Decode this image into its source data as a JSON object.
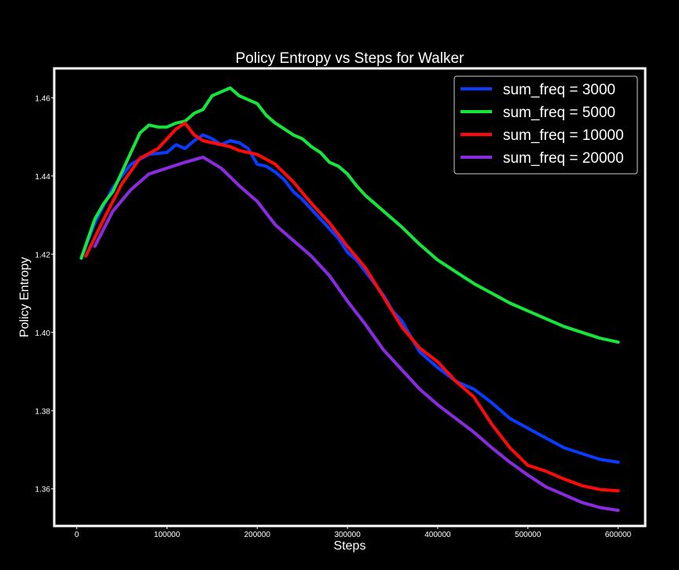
{
  "chart_data": {
    "type": "line",
    "title": "Policy Entropy vs Steps for Walker",
    "xlabel": "Steps",
    "ylabel": "Policy Entropy",
    "xlim": [
      -25000,
      630000
    ],
    "ylim": [
      1.3505,
      1.4675
    ],
    "x_ticks": [
      0,
      100000,
      200000,
      300000,
      400000,
      500000,
      600000
    ],
    "x_tick_labels": [
      "0",
      "100000",
      "200000",
      "300000",
      "400000",
      "500000",
      "600000"
    ],
    "y_ticks": [
      1.36,
      1.38,
      1.4,
      1.42,
      1.44,
      1.46
    ],
    "y_tick_labels": [
      "1.36",
      "1.38",
      "1.40",
      "1.42",
      "1.44",
      "1.46"
    ],
    "grid": false,
    "legend_position": "top-right",
    "background": "#000000",
    "foreground": "#ffffff",
    "series": [
      {
        "name": "sum_freq = 3000",
        "color": "#0a3cff",
        "x": [
          5000,
          20000,
          40000,
          60000,
          80000,
          100000,
          110000,
          120000,
          130000,
          140000,
          150000,
          160000,
          170000,
          180000,
          190000,
          200000,
          210000,
          220000,
          230000,
          240000,
          250000,
          260000,
          270000,
          280000,
          290000,
          300000,
          310000,
          320000,
          330000,
          340000,
          350000,
          360000,
          370000,
          380000,
          390000,
          400000,
          420000,
          440000,
          460000,
          480000,
          500000,
          520000,
          540000,
          560000,
          580000,
          600000
        ],
        "values": [
          1.419,
          1.428,
          1.437,
          1.443,
          1.4455,
          1.446,
          1.448,
          1.447,
          1.449,
          1.4505,
          1.4495,
          1.448,
          1.449,
          1.4485,
          1.447,
          1.443,
          1.4425,
          1.441,
          1.439,
          1.436,
          1.434,
          1.4315,
          1.429,
          1.4265,
          1.424,
          1.4205,
          1.4185,
          1.4155,
          1.4125,
          1.4095,
          1.4055,
          1.403,
          1.399,
          1.395,
          1.393,
          1.391,
          1.3875,
          1.3855,
          1.382,
          1.378,
          1.3755,
          1.373,
          1.3705,
          1.369,
          1.3675,
          1.3668
        ]
      },
      {
        "name": "sum_freq = 5000",
        "color": "#15e63c",
        "x": [
          5000,
          20000,
          30000,
          40000,
          50000,
          60000,
          70000,
          80000,
          90000,
          100000,
          110000,
          120000,
          130000,
          140000,
          150000,
          160000,
          170000,
          180000,
          190000,
          200000,
          210000,
          220000,
          230000,
          240000,
          250000,
          260000,
          270000,
          280000,
          290000,
          300000,
          310000,
          320000,
          340000,
          360000,
          380000,
          400000,
          420000,
          440000,
          460000,
          480000,
          500000,
          520000,
          540000,
          560000,
          580000,
          600000
        ],
        "values": [
          1.419,
          1.429,
          1.433,
          1.436,
          1.441,
          1.446,
          1.451,
          1.453,
          1.4525,
          1.4525,
          1.4535,
          1.454,
          1.456,
          1.457,
          1.4605,
          1.4615,
          1.4625,
          1.4605,
          1.4595,
          1.4585,
          1.4555,
          1.4535,
          1.452,
          1.4505,
          1.4495,
          1.4475,
          1.446,
          1.4435,
          1.4425,
          1.4405,
          1.4375,
          1.435,
          1.431,
          1.427,
          1.4225,
          1.4185,
          1.4155,
          1.4125,
          1.41,
          1.4075,
          1.4055,
          1.4035,
          1.4015,
          1.4,
          1.3985,
          1.3975
        ]
      },
      {
        "name": "sum_freq = 10000",
        "color": "#ff0a0a",
        "x": [
          10000,
          30000,
          50000,
          70000,
          90000,
          100000,
          110000,
          120000,
          130000,
          140000,
          150000,
          160000,
          170000,
          180000,
          200000,
          220000,
          240000,
          260000,
          280000,
          300000,
          320000,
          340000,
          360000,
          380000,
          400000,
          420000,
          440000,
          460000,
          480000,
          500000,
          520000,
          540000,
          560000,
          580000,
          600000
        ],
        "values": [
          1.4195,
          1.429,
          1.438,
          1.4445,
          1.447,
          1.4495,
          1.452,
          1.4535,
          1.4505,
          1.449,
          1.4485,
          1.448,
          1.4475,
          1.4465,
          1.4455,
          1.443,
          1.4385,
          1.433,
          1.428,
          1.422,
          1.4165,
          1.409,
          1.4015,
          1.396,
          1.3925,
          1.3875,
          1.3835,
          1.3765,
          1.3705,
          1.366,
          1.3645,
          1.3625,
          1.3608,
          1.3598,
          1.3595
        ]
      },
      {
        "name": "sum_freq = 20000",
        "color": "#8a2be2",
        "x": [
          20000,
          40000,
          60000,
          80000,
          100000,
          120000,
          140000,
          160000,
          180000,
          200000,
          220000,
          240000,
          260000,
          280000,
          300000,
          320000,
          340000,
          360000,
          380000,
          400000,
          420000,
          440000,
          460000,
          480000,
          500000,
          520000,
          540000,
          560000,
          580000,
          600000
        ],
        "values": [
          1.422,
          1.431,
          1.4365,
          1.4405,
          1.442,
          1.4435,
          1.4448,
          1.442,
          1.4375,
          1.4335,
          1.4275,
          1.4235,
          1.4195,
          1.4145,
          1.408,
          1.402,
          1.3955,
          1.3905,
          1.3855,
          1.3815,
          1.378,
          1.3745,
          1.3705,
          1.3668,
          1.3635,
          1.3605,
          1.3585,
          1.3565,
          1.3552,
          1.3545
        ]
      }
    ]
  }
}
